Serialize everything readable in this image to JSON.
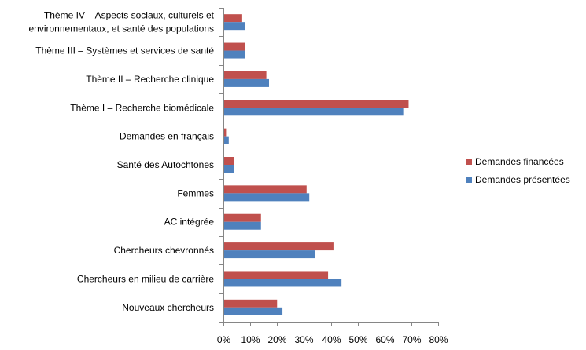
{
  "chart_data": {
    "type": "bar",
    "orientation": "horizontal",
    "categories": [
      [
        "Thème IV – Aspects sociaux, culturels et",
        "environnementaux, et santé des populations"
      ],
      [
        "Thème III – Systèmes et services de santé"
      ],
      [
        "Thème II – Recherche clinique"
      ],
      [
        "Thème I – Recherche biomédicale"
      ],
      [
        "Demandes en français"
      ],
      [
        "Santé des Autochtones"
      ],
      [
        "Femmes"
      ],
      [
        "AC intégrée"
      ],
      [
        "Chercheurs chevronnés"
      ],
      [
        "Chercheurs en milieu de carrière"
      ],
      [
        "Nouveaux chercheurs"
      ]
    ],
    "series": [
      {
        "name": "Demandes financées",
        "color": "#c0504d",
        "values": [
          7,
          8,
          16,
          69,
          1,
          4,
          31,
          14,
          41,
          39,
          20
        ]
      },
      {
        "name": "Demandes présentées",
        "color": "#4f81bd",
        "values": [
          8,
          8,
          17,
          67,
          2,
          4,
          32,
          14,
          34,
          44,
          22
        ]
      }
    ],
    "xlim": [
      0,
      80
    ],
    "xticks": [
      "0%",
      "10%",
      "20%",
      "30%",
      "40%",
      "50%",
      "60%",
      "70%",
      "80%"
    ],
    "grid": false,
    "separator_after_category": 3,
    "legend_position": "right"
  }
}
